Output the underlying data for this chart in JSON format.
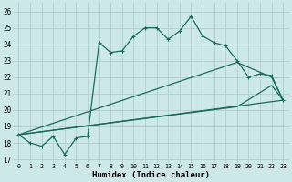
{
  "xlabel": "Humidex (Indice chaleur)",
  "bg_color": "#cde8e8",
  "grid_color": "#afd0d0",
  "line_color": "#1a6b5a",
  "xlim": [
    -0.5,
    23.5
  ],
  "ylim": [
    16.8,
    26.5
  ],
  "xticks": [
    0,
    1,
    2,
    3,
    4,
    5,
    6,
    7,
    8,
    9,
    10,
    11,
    12,
    13,
    14,
    15,
    16,
    17,
    18,
    19,
    20,
    21,
    22,
    23
  ],
  "yticks": [
    17,
    18,
    19,
    20,
    21,
    22,
    23,
    24,
    25,
    26
  ],
  "line1_x": [
    0,
    1,
    2,
    3,
    4,
    5,
    6,
    7,
    8,
    9,
    10,
    11,
    12,
    13,
    14,
    15,
    16,
    17,
    18,
    19,
    20,
    21,
    22,
    23
  ],
  "line1_y": [
    18.5,
    18.0,
    17.8,
    18.4,
    17.3,
    18.3,
    18.4,
    24.1,
    23.5,
    23.6,
    24.5,
    25.0,
    25.0,
    24.3,
    24.8,
    25.7,
    24.5,
    24.1,
    23.9,
    23.0,
    22.0,
    22.2,
    22.1,
    20.6
  ],
  "line2_x": [
    0,
    23
  ],
  "line2_y": [
    18.5,
    20.6
  ],
  "line3_x": [
    0,
    19,
    22,
    23
  ],
  "line3_y": [
    18.5,
    22.9,
    22.0,
    20.6
  ],
  "line4_x": [
    0,
    19,
    22,
    23
  ],
  "line4_y": [
    18.5,
    20.2,
    21.5,
    20.6
  ]
}
